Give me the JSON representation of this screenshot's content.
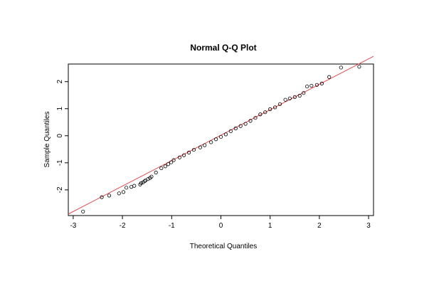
{
  "chart_data": {
    "type": "scatter",
    "title": "Normal Q-Q Plot",
    "xlabel": "Theoretical Quantiles",
    "ylabel": "Sample Quantiles",
    "xlim": [
      -3.1,
      3.1
    ],
    "ylim": [
      -2.95,
      2.65
    ],
    "xticks": [
      -3,
      -2,
      -1,
      0,
      1,
      2,
      3
    ],
    "yticks": [
      -2,
      -1,
      0,
      1,
      2
    ],
    "grid": false,
    "marker": "open-circle",
    "reference_line": {
      "label": "",
      "intercept": 0.02,
      "slope": 0.94,
      "color": "#e05050"
    },
    "points": {
      "x": [
        -2.8,
        -2.42,
        -2.27,
        -2.07,
        -1.98,
        -1.92,
        -1.82,
        -1.76,
        -1.64,
        -1.62,
        -1.58,
        -1.55,
        -1.53,
        -1.48,
        -1.44,
        -1.41,
        -1.32,
        -1.21,
        -1.13,
        -1.07,
        -1.01,
        -0.96,
        -0.84,
        -0.75,
        -0.65,
        -0.55,
        -0.42,
        -0.33,
        -0.2,
        -0.1,
        0.0,
        0.1,
        0.2,
        0.3,
        0.4,
        0.5,
        0.6,
        0.7,
        0.8,
        0.9,
        1.0,
        1.1,
        1.2,
        1.31,
        1.4,
        1.5,
        1.6,
        1.68,
        1.75,
        1.84,
        1.95,
        2.05,
        2.2,
        2.44,
        2.81
      ],
      "y": [
        -2.8,
        -2.27,
        -2.21,
        -2.13,
        -2.08,
        -1.92,
        -1.89,
        -1.85,
        -1.8,
        -1.75,
        -1.72,
        -1.68,
        -1.65,
        -1.6,
        -1.56,
        -1.51,
        -1.36,
        -1.2,
        -1.13,
        -1.05,
        -0.98,
        -0.9,
        -0.8,
        -0.72,
        -0.62,
        -0.52,
        -0.43,
        -0.35,
        -0.24,
        -0.13,
        -0.04,
        0.05,
        0.17,
        0.27,
        0.36,
        0.44,
        0.55,
        0.66,
        0.79,
        0.87,
        0.98,
        1.05,
        1.17,
        1.33,
        1.38,
        1.43,
        1.48,
        1.58,
        1.82,
        1.85,
        1.88,
        1.93,
        2.17,
        2.52,
        2.55
      ]
    }
  }
}
